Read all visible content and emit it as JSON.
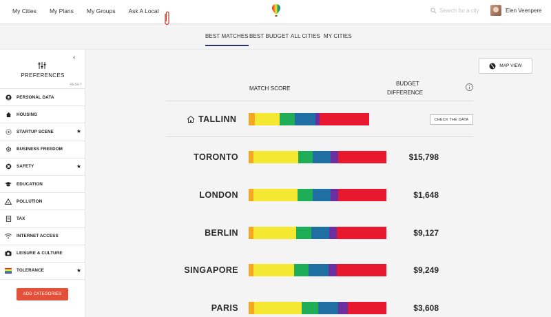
{
  "top_nav": [
    "My Cities",
    "My Plans",
    "My Groups",
    "Ask A Local"
  ],
  "search": {
    "placeholder": "Search for a city"
  },
  "user": {
    "name": "Elen Veenpere"
  },
  "tabs": [
    {
      "label": "BEST MATCHES",
      "active": true
    },
    {
      "label": "BEST BUDGET",
      "active": false
    },
    {
      "label": "ALL CITIES",
      "active": false
    },
    {
      "label": "MY CITIES",
      "active": false
    }
  ],
  "sidebar": {
    "title": "PREFERENCES",
    "reset": "RESET",
    "categories": [
      {
        "label": "PERSONAL DATA",
        "icon": "person-icon",
        "starred": false
      },
      {
        "label": "HOUSING",
        "icon": "house-icon",
        "starred": false
      },
      {
        "label": "STARTUP SCENE",
        "icon": "startup-icon",
        "starred": true
      },
      {
        "label": "BUSINESS FREEDOM",
        "icon": "gear-icon",
        "starred": false
      },
      {
        "label": "SAFETY",
        "icon": "lifebuoy-icon",
        "starred": true
      },
      {
        "label": "EDUCATION",
        "icon": "graduation-cap-icon",
        "starred": false
      },
      {
        "label": "POLLUTION",
        "icon": "warning-triangle-icon",
        "starred": false
      },
      {
        "label": "TAX",
        "icon": "tax-icon",
        "starred": false
      },
      {
        "label": "INTERNET ACCESS",
        "icon": "wifi-icon",
        "starred": false
      },
      {
        "label": "LEISURE & CULTURE",
        "icon": "camera-icon",
        "starred": false
      },
      {
        "label": "TOLERANCE",
        "icon": "rainbow-flag-icon",
        "starred": true
      }
    ],
    "star": "★",
    "add_button": "ADD CATEGORIES"
  },
  "main": {
    "map_view": "MAP VIEW",
    "match_score_header": "MATCH SCORE",
    "budget_header_line1": "BUDGET",
    "budget_header_line2": "DIFFERENCE",
    "home": {
      "city": "TALLINN",
      "check_button": "CHECK THE DATA"
    },
    "cities": [
      {
        "city": "TORONTO",
        "diff": "$15,798"
      },
      {
        "city": "LONDON",
        "diff": "$1,648"
      },
      {
        "city": "BERLIN",
        "diff": "$9,127"
      },
      {
        "city": "SINGAPORE",
        "diff": "$9,249"
      },
      {
        "city": "PARIS",
        "diff": "$3,608"
      }
    ]
  },
  "colors": {
    "accent": "#e3513b",
    "tab_underline": "#2c2f6e",
    "bar_segments": [
      "#f5a623",
      "#f4e832",
      "#1fae57",
      "#1f6fa3",
      "#6b2fa0",
      "#e8182f",
      "#eaeaea"
    ]
  },
  "score_bars": [
    {
      "fractions": [
        0.012,
        0.048,
        0.028,
        0.04,
        0.008,
        0.095
      ]
    },
    {
      "fractions": [
        0.012,
        0.112,
        0.036,
        0.044,
        0.02,
        0.12
      ]
    },
    {
      "fractions": [
        0.012,
        0.105,
        0.037,
        0.042,
        0.018,
        0.116
      ]
    },
    {
      "fractions": [
        0.012,
        0.1,
        0.037,
        0.043,
        0.018,
        0.117
      ]
    },
    {
      "fractions": [
        0.012,
        0.095,
        0.035,
        0.046,
        0.02,
        0.117
      ]
    },
    {
      "fractions": [
        0.012,
        0.105,
        0.036,
        0.044,
        0.02,
        0.085
      ]
    }
  ]
}
